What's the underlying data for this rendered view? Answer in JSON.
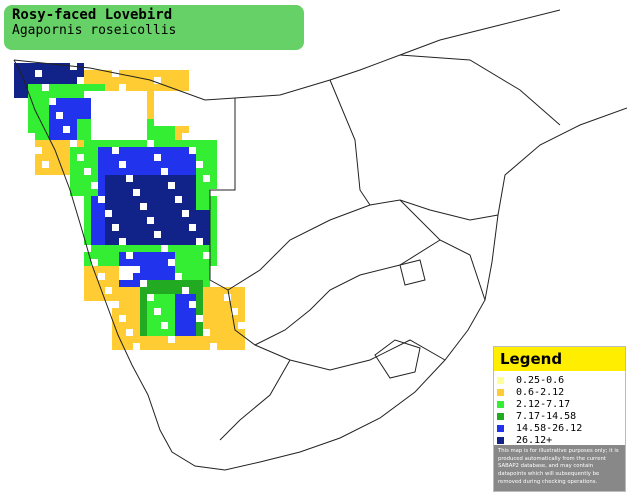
{
  "header": {
    "title": "Rosy-faced Lovebird",
    "subtitle": "Agapornis roseicollis"
  },
  "legend": {
    "title": "Legend",
    "items": [
      {
        "label": "0.25-0.6",
        "color": "#ffff99"
      },
      {
        "label": "0.6-2.12",
        "color": "#ffcc33"
      },
      {
        "label": "2.12-7.17",
        "color": "#33ee33"
      },
      {
        "label": "7.17-14.58",
        "color": "#22aa22"
      },
      {
        "label": "14.58-26.12",
        "color": "#2233ee"
      },
      {
        "label": "26.12+",
        "color": "#112288"
      }
    ],
    "note": "This map is for illustrative purposes only; it is produced automatically from the current SABAP2 database, and may contain datapoints which will subsequently be removed during checking operations."
  }
}
